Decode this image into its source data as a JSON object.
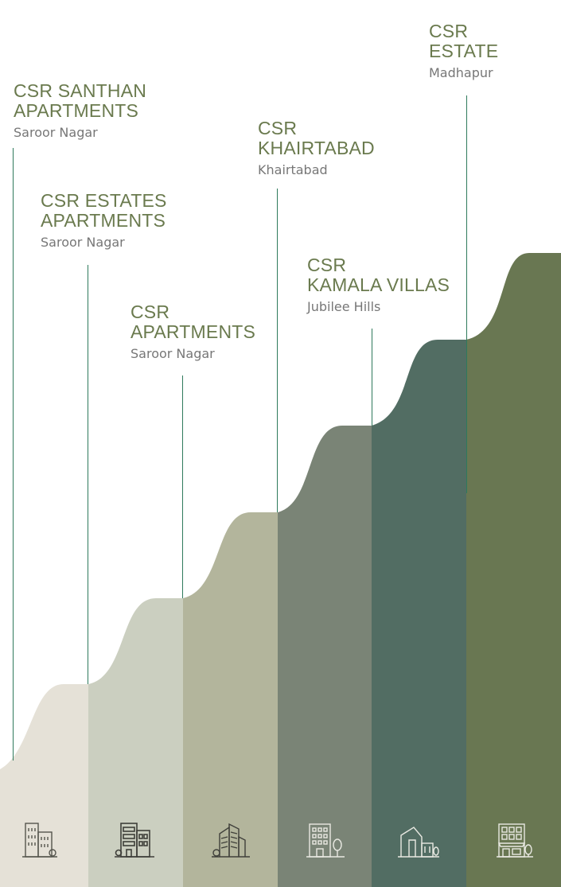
{
  "colors": {
    "label_text": "#6a7a4e",
    "location_text": "#777777",
    "line": "#2f7a5c"
  },
  "projects": [
    {
      "name": "CSR SANTHAN\nAPARTMENTS",
      "location": "Saroor Nagar",
      "color": "#e5e1d7",
      "icon": "office-buildings-icon",
      "icon_color": "#55554d"
    },
    {
      "name": "CSR ESTATES\nAPARTMENTS",
      "location": "Saroor Nagar",
      "color": "#cbcfc0",
      "icon": "apartment-block-icon",
      "icon_color": "#3f3f3a"
    },
    {
      "name": "CSR\nAPARTMENTS",
      "location": "Saroor Nagar",
      "color": "#b3b59c",
      "icon": "skyscrapers-icon",
      "icon_color": "#3f3f3a"
    },
    {
      "name": "CSR\nKHAIRTABAD",
      "location": "Khairtabad",
      "color": "#7a8476",
      "icon": "office-tower-tree-icon",
      "icon_color": "#e9e9e2"
    },
    {
      "name": "CSR\nKAMALA VILLAS",
      "location": "Jubilee Hills",
      "color": "#526d63",
      "icon": "villa-icon",
      "icon_color": "#e9e9e2"
    },
    {
      "name": "CSR\nESTATE",
      "location": "Madhapur",
      "color": "#697752",
      "icon": "storefront-building-icon",
      "icon_color": "#e9e9e2"
    }
  ]
}
